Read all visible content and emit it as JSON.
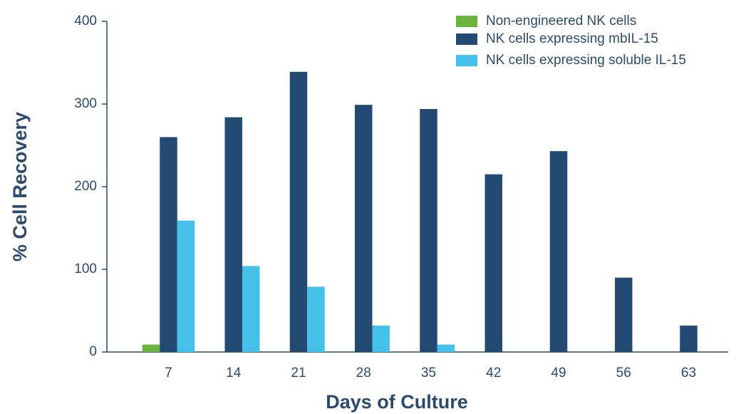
{
  "chart_data": {
    "type": "bar",
    "categories": [
      "7",
      "14",
      "21",
      "28",
      "35",
      "42",
      "49",
      "56",
      "63"
    ],
    "series": [
      {
        "name": "Non-engineered NK cells",
        "color": "#6db33f",
        "values": [
          9,
          null,
          null,
          null,
          null,
          null,
          null,
          null,
          null
        ]
      },
      {
        "name": "NK cells expressing mbIL-15",
        "color": "#234a72",
        "values": [
          260,
          284,
          339,
          299,
          294,
          215,
          243,
          90,
          32
        ]
      },
      {
        "name": "NK cells expressing soluble IL-15",
        "color": "#45c1ea",
        "values": [
          159,
          104,
          79,
          32,
          9,
          null,
          null,
          null,
          null
        ]
      }
    ],
    "xlabel": "Days of Culture",
    "ylabel": "% Cell Recovery",
    "ylim": [
      0,
      400
    ],
    "yticks": [
      0,
      100,
      200,
      300,
      400
    ],
    "grid": false,
    "legend": "top-right"
  }
}
